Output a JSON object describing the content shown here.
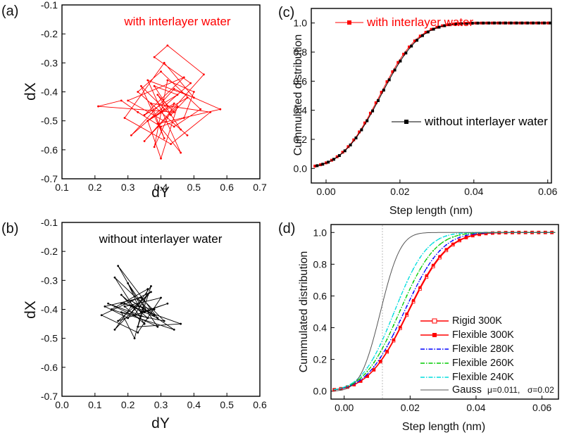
{
  "panels": {
    "a": {
      "label": "(a)",
      "annotation": "with interlayer water",
      "annotation_color": "#ff0000"
    },
    "b": {
      "label": "(b)",
      "annotation": "without interlayer water",
      "annotation_color": "#000000"
    },
    "c": {
      "label": "(c)"
    },
    "d": {
      "label": "(d)",
      "gauss_mu": "μ=0.011,",
      "gauss_sigma": "σ=0.02"
    }
  },
  "chart_data": [
    {
      "id": "a",
      "type": "line",
      "title": "",
      "xlabel": "dY",
      "ylabel": "dX",
      "xlim": [
        0.1,
        0.7
      ],
      "ylim": [
        -0.7,
        -0.1
      ],
      "xticks": [
        "0.1",
        "0.2",
        "0.3",
        "0.4",
        "0.5",
        "0.6",
        "0.7"
      ],
      "yticks": [
        "-0.1",
        "-0.2",
        "-0.3",
        "-0.4",
        "-0.5",
        "-0.6",
        "-0.7"
      ],
      "series": [
        {
          "name": "with interlayer water",
          "color": "#ff0000",
          "x": [
            0.42,
            0.38,
            0.45,
            0.35,
            0.47,
            0.3,
            0.44,
            0.52,
            0.4,
            0.33,
            0.48,
            0.37,
            0.55,
            0.43,
            0.29,
            0.41,
            0.5,
            0.36,
            0.46,
            0.39,
            0.58,
            0.44,
            0.31,
            0.49,
            0.38,
            0.42,
            0.53,
            0.35,
            0.45,
            0.4,
            0.36,
            0.48,
            0.43,
            0.34,
            0.41,
            0.37,
            0.46,
            0.39,
            0.44,
            0.21,
            0.28,
            0.33,
            0.4,
            0.47,
            0.5,
            0.42,
            0.38,
            0.44,
            0.36,
            0.41
          ],
          "y": [
            -0.45,
            -0.38,
            -0.41,
            -0.48,
            -0.35,
            -0.43,
            -0.52,
            -0.46,
            -0.33,
            -0.4,
            -0.55,
            -0.44,
            -0.47,
            -0.58,
            -0.49,
            -0.3,
            -0.42,
            -0.36,
            -0.61,
            -0.51,
            -0.46,
            -0.39,
            -0.55,
            -0.37,
            -0.28,
            -0.24,
            -0.34,
            -0.57,
            -0.45,
            -0.63,
            -0.5,
            -0.42,
            -0.48,
            -0.38,
            -0.56,
            -0.44,
            -0.53,
            -0.41,
            -0.47,
            -0.45,
            -0.43,
            -0.47,
            -0.52,
            -0.49,
            -0.4,
            -0.36,
            -0.59,
            -0.44,
            -0.5,
            -0.46
          ]
        }
      ]
    },
    {
      "id": "b",
      "type": "line",
      "title": "",
      "xlabel": "dY",
      "ylabel": "dX",
      "xlim": [
        0.0,
        0.6
      ],
      "ylim": [
        -0.7,
        -0.1
      ],
      "xticks": [
        "0.0",
        "0.1",
        "0.2",
        "0.3",
        "0.4",
        "0.5",
        "0.6"
      ],
      "yticks": [
        "-0.1",
        "-0.2",
        "-0.3",
        "-0.4",
        "-0.5",
        "-0.6",
        "-0.7"
      ],
      "series": [
        {
          "name": "without interlayer water",
          "color": "#000000",
          "x": [
            0.22,
            0.18,
            0.26,
            0.14,
            0.29,
            0.2,
            0.24,
            0.32,
            0.17,
            0.27,
            0.12,
            0.23,
            0.3,
            0.19,
            0.25,
            0.16,
            0.28,
            0.21,
            0.34,
            0.15,
            0.26,
            0.22,
            0.18,
            0.31,
            0.24,
            0.13,
            0.2,
            0.27,
            0.23,
            0.36,
            0.19,
            0.25,
            0.17,
            0.29,
            0.21,
            0.16,
            0.26,
            0.22,
            0.28,
            0.18
          ],
          "y": [
            -0.4,
            -0.35,
            -0.43,
            -0.38,
            -0.46,
            -0.31,
            -0.41,
            -0.38,
            -0.44,
            -0.34,
            -0.42,
            -0.48,
            -0.36,
            -0.39,
            -0.45,
            -0.29,
            -0.42,
            -0.37,
            -0.47,
            -0.4,
            -0.33,
            -0.5,
            -0.41,
            -0.44,
            -0.36,
            -0.39,
            -0.43,
            -0.32,
            -0.46,
            -0.45,
            -0.38,
            -0.41,
            -0.25,
            -0.43,
            -0.39,
            -0.47,
            -0.35,
            -0.42,
            -0.4,
            -0.38
          ]
        }
      ]
    },
    {
      "id": "c",
      "type": "line",
      "title": "",
      "xlabel": "Step length (nm)",
      "ylabel": "Cummulated distribution",
      "xlim": [
        -0.004,
        0.061
      ],
      "ylim": [
        -0.1,
        1.1
      ],
      "xticks": [
        "0.00",
        "0.02",
        "0.04",
        "0.06"
      ],
      "yticks": [
        "0.0",
        "0.2",
        "0.4",
        "0.6",
        "0.8",
        "1.0"
      ],
      "legend": [
        "with interlayer water",
        "without interlayer water"
      ],
      "series": [
        {
          "name": "with interlayer water",
          "color": "#ff0000",
          "marker": "square",
          "cdf_center": 0.0145,
          "cdf_width": 0.0082
        },
        {
          "name": "without interlayer water",
          "color": "#000000",
          "marker": "square",
          "cdf_center": 0.0148,
          "cdf_width": 0.0083
        }
      ]
    },
    {
      "id": "d",
      "type": "line",
      "title": "",
      "xlabel": "Step length (nm)",
      "ylabel": "Cummulated distribution",
      "xlim": [
        -0.004,
        0.065
      ],
      "ylim": [
        -0.05,
        1.05
      ],
      "xticks": [
        "0.00",
        "0.02",
        "0.04",
        "0.06"
      ],
      "yticks": [
        "0.0",
        "0.2",
        "0.4",
        "0.6",
        "0.8",
        "1.0"
      ],
      "legend": [
        "Rigid     300K",
        "Flexible 300K",
        "Flexible 280K",
        "Flexible 260K",
        "Flexible 240K",
        "Gauss"
      ],
      "series": [
        {
          "name": "Rigid     300K",
          "color": "#ff0000",
          "marker": "open-square",
          "cdf_center": 0.0195,
          "cdf_width": 0.0095
        },
        {
          "name": "Flexible 300K",
          "color": "#ff0000",
          "marker": "square",
          "cdf_center": 0.0193,
          "cdf_width": 0.0094
        },
        {
          "name": "Flexible 280K",
          "color": "#0000ff",
          "marker": "dashdot",
          "cdf_center": 0.0182,
          "cdf_width": 0.009
        },
        {
          "name": "Flexible 260K",
          "color": "#00cc00",
          "marker": "dashdot",
          "cdf_center": 0.0168,
          "cdf_width": 0.0085
        },
        {
          "name": "Flexible 240K",
          "color": "#00dddd",
          "marker": "dashdot",
          "cdf_center": 0.0152,
          "cdf_width": 0.0078
        },
        {
          "name": "Gauss",
          "color": "#555555",
          "marker": "none",
          "cdf_center": 0.011,
          "cdf_width": 0.0048
        }
      ]
    }
  ]
}
